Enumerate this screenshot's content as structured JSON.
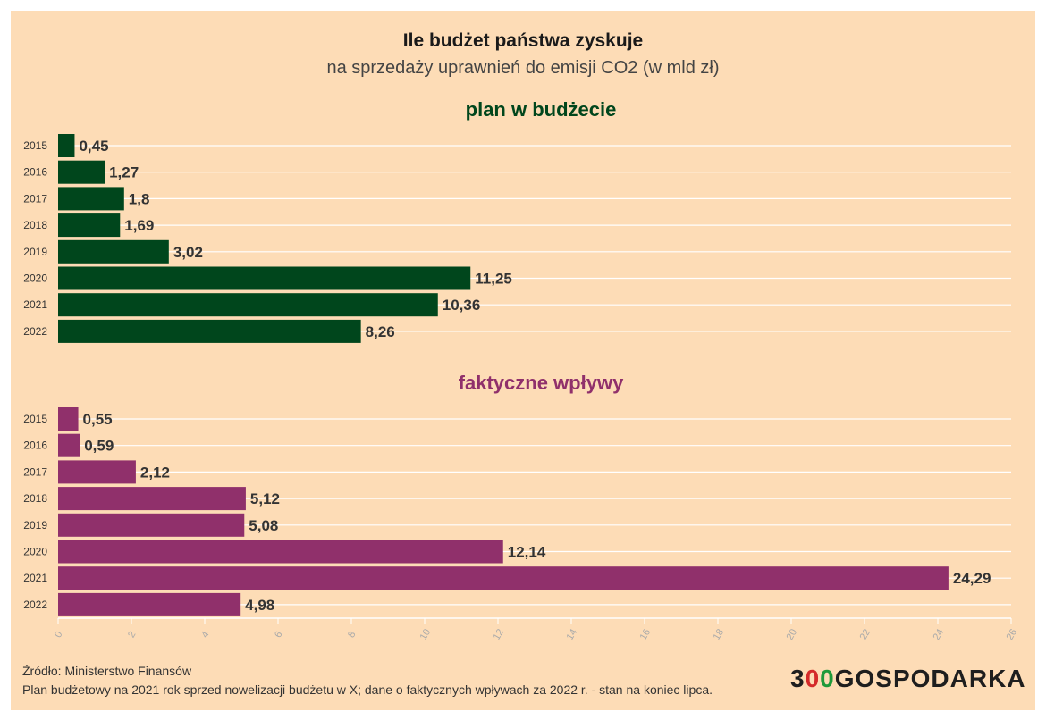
{
  "chart_data": [
    {
      "type": "bar",
      "orientation": "horizontal",
      "title": "Ile budżet państwa zyskuje",
      "subtitle": "na sprzedaży uprawnień do emisji CO2 (w mld zł)",
      "panel_title": "plan w budżecie",
      "color": "#00461c",
      "categories": [
        "2015",
        "2016",
        "2017",
        "2018",
        "2019",
        "2020",
        "2021",
        "2022"
      ],
      "values": [
        0.45,
        1.27,
        1.8,
        1.69,
        3.02,
        11.25,
        10.36,
        8.26
      ],
      "labels": [
        "0,45",
        "1,27",
        "1,8",
        "1,69",
        "3,02",
        "11,25",
        "10,36",
        "8,26"
      ],
      "xlim": [
        0,
        26
      ],
      "grid": true
    },
    {
      "type": "bar",
      "orientation": "horizontal",
      "panel_title": "faktyczne wpływy",
      "color": "#90306b",
      "categories": [
        "2015",
        "2016",
        "2017",
        "2018",
        "2019",
        "2020",
        "2021",
        "2022"
      ],
      "values": [
        0.55,
        0.59,
        2.12,
        5.12,
        5.08,
        12.14,
        24.29,
        4.98
      ],
      "labels": [
        "0,55",
        "0,59",
        "2,12",
        "5,12",
        "5,08",
        "12,14",
        "24,29",
        "4,98"
      ],
      "xlim": [
        0,
        26
      ],
      "xticks": [
        "0",
        "2",
        "4",
        "6",
        "8",
        "10",
        "12",
        "14",
        "16",
        "18",
        "20",
        "22",
        "24",
        "26"
      ],
      "grid": true
    }
  ],
  "footer": {
    "source": "Źródło: Ministerstwo Finansów",
    "note": "Plan budżetowy na 2021 rok sprzed nowelizacji budżetu w X; dane o faktycznych wpływach za 2022 r. - stan na koniec lipca."
  },
  "logo": {
    "prefix": "3",
    "o1": "0",
    "o2": "0",
    "suffix": "GOSPODARKA"
  }
}
